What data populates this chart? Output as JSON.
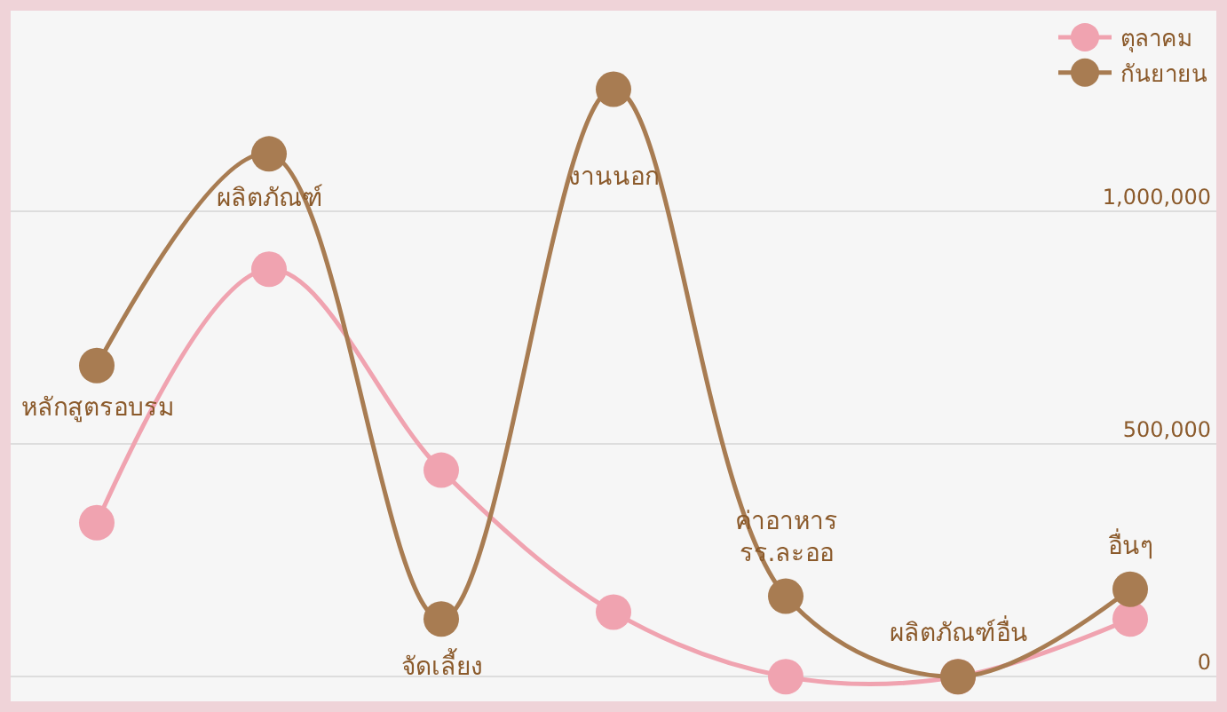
{
  "chart_data": {
    "type": "line",
    "categories": [
      "หลักสูตรอบรม",
      "ผลิตภัณฑ์",
      "จัดเลี้ยง",
      "งานนอก",
      "ค่าอาหาร\nรร.ละออ",
      "ผลิตภัณฑ์อื่น",
      "อื่นๆ"
    ],
    "series": [
      {
        "name": "ตุลาคม",
        "color": "#f0a3b0",
        "values": [
          331000,
          876000,
          444000,
          139000,
          0,
          0,
          124000
        ]
      },
      {
        "name": "กันยายน",
        "color": "#a87c52",
        "values": [
          669000,
          1124000,
          124000,
          1263000,
          173000,
          0,
          188000
        ]
      }
    ],
    "ylim": [
      -53000,
      1432000
    ],
    "yticks": [
      {
        "value": 0,
        "label": "0"
      },
      {
        "value": 500000,
        "label": "500,000"
      },
      {
        "value": 1000000,
        "label": "1,000,000"
      }
    ],
    "grid": "y",
    "legend": "top right",
    "marker": "circle",
    "line_style": "solid"
  }
}
